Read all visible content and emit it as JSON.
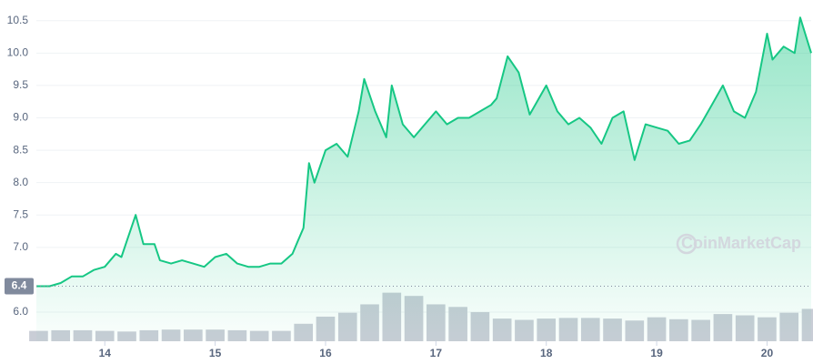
{
  "chart_data": {
    "type": "line",
    "watermark": "CoinMarketCap",
    "xlim": [
      13.38,
      20.4
    ],
    "xticks": [
      14,
      15,
      16,
      17,
      18,
      19,
      20
    ],
    "ylim": [
      5.55,
      10.82
    ],
    "yticks": [
      {
        "value": 6.0,
        "label": "6.0"
      },
      {
        "value": 7.0,
        "label": "7.0"
      },
      {
        "value": 7.5,
        "label": "7.5"
      },
      {
        "value": 8.0,
        "label": "8.0"
      },
      {
        "value": 8.5,
        "label": "8.5"
      },
      {
        "value": 9.0,
        "label": "9.0"
      },
      {
        "value": 9.5,
        "label": "9.5"
      },
      {
        "value": 10.0,
        "label": "10.0"
      },
      {
        "value": 10.5,
        "label": "10.5"
      }
    ],
    "grid": true,
    "reference": {
      "value": 6.4,
      "color": "#808a9d"
    },
    "series": [
      {
        "color": "#16c784",
        "x": [
          13.38,
          13.5,
          13.6,
          13.7,
          13.8,
          13.9,
          14.0,
          14.1,
          14.15,
          14.2,
          14.28,
          14.35,
          14.45,
          14.5,
          14.6,
          14.7,
          14.8,
          14.9,
          15.0,
          15.1,
          15.2,
          15.3,
          15.4,
          15.5,
          15.6,
          15.7,
          15.75,
          15.8,
          15.85,
          15.9,
          16.0,
          16.1,
          16.2,
          16.3,
          16.35,
          16.45,
          16.55,
          16.6,
          16.7,
          16.8,
          16.9,
          17.0,
          17.1,
          17.2,
          17.3,
          17.4,
          17.5,
          17.55,
          17.65,
          17.75,
          17.85,
          18.0,
          18.1,
          18.2,
          18.3,
          18.4,
          18.5,
          18.6,
          18.7,
          18.8,
          18.9,
          19.0,
          19.1,
          19.2,
          19.3,
          19.4,
          19.5,
          19.6,
          19.7,
          19.8,
          19.9,
          20.0,
          20.05,
          20.15,
          20.25,
          20.3,
          20.4
        ],
        "values": [
          6.4,
          6.4,
          6.45,
          6.55,
          6.55,
          6.65,
          6.7,
          6.9,
          6.85,
          7.1,
          7.5,
          7.05,
          7.05,
          6.8,
          6.75,
          6.8,
          6.75,
          6.7,
          6.85,
          6.9,
          6.75,
          6.7,
          6.7,
          6.75,
          6.75,
          6.9,
          7.1,
          7.3,
          8.3,
          8.0,
          8.5,
          8.6,
          8.4,
          9.1,
          9.6,
          9.1,
          8.7,
          9.5,
          8.9,
          8.7,
          8.9,
          9.1,
          8.9,
          9.0,
          9.0,
          9.1,
          9.2,
          9.3,
          9.95,
          9.7,
          9.05,
          9.5,
          9.1,
          8.9,
          9.0,
          8.85,
          8.6,
          9.0,
          9.1,
          8.35,
          8.9,
          8.85,
          8.8,
          8.6,
          8.65,
          8.9,
          9.2,
          9.5,
          9.1,
          9.0,
          9.4,
          10.3,
          9.9,
          10.1,
          10.0,
          10.55,
          10.0
        ]
      },
      {
        "type": "bar",
        "color": "#c9cdd6",
        "x": [
          13.4,
          13.6,
          13.8,
          14.0,
          14.2,
          14.4,
          14.6,
          14.8,
          15.0,
          15.2,
          15.4,
          15.6,
          15.8,
          16.0,
          16.2,
          16.4,
          16.6,
          16.8,
          17.0,
          17.2,
          17.4,
          17.6,
          17.8,
          18.0,
          18.2,
          18.4,
          18.6,
          18.8,
          19.0,
          19.2,
          19.4,
          19.6,
          19.8,
          20.0,
          20.2,
          20.4
        ],
        "values": [
          5.71,
          5.72,
          5.72,
          5.71,
          5.7,
          5.72,
          5.73,
          5.73,
          5.73,
          5.72,
          5.71,
          5.71,
          5.82,
          5.93,
          5.99,
          6.12,
          6.3,
          6.25,
          6.12,
          6.08,
          6.0,
          5.9,
          5.88,
          5.9,
          5.91,
          5.91,
          5.9,
          5.87,
          5.92,
          5.89,
          5.88,
          5.97,
          5.95,
          5.92,
          5.99,
          6.05
        ]
      }
    ]
  }
}
